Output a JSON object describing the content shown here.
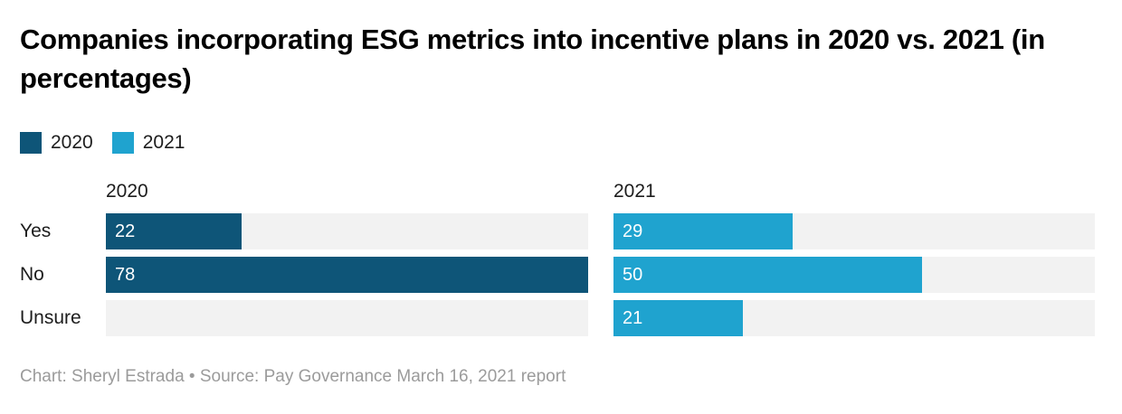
{
  "header": {
    "title": "Companies incorporating ESG metrics into incentive plans in 2020 vs. 2021 (in percentages)"
  },
  "legend": {
    "items": [
      {
        "label": "2020",
        "color": "#0e5578"
      },
      {
        "label": "2021",
        "color": "#1fa3cf"
      }
    ]
  },
  "chart_data": {
    "type": "bar",
    "orientation": "horizontal",
    "layout": "split-panels-by-series",
    "categories": [
      "Yes",
      "No",
      "Unsure"
    ],
    "series": [
      {
        "name": "2020",
        "color": "#0e5578",
        "values": [
          22,
          78,
          null
        ]
      },
      {
        "name": "2021",
        "color": "#1fa3cf",
        "values": [
          29,
          50,
          21
        ]
      }
    ],
    "title": "Companies incorporating ESG metrics into incentive plans in 2020 vs. 2021 (in percentages)",
    "xlabel": "",
    "ylabel": "",
    "xlim": [
      0,
      78
    ],
    "scale_max": 78,
    "value_labels": "inside-left-white",
    "track_color": "#f2f2f2",
    "grid": false,
    "legend_position": "top-left"
  },
  "footer": {
    "text": "Chart: Sheryl Estrada • Source: Pay Governance March 16, 2021 report"
  }
}
